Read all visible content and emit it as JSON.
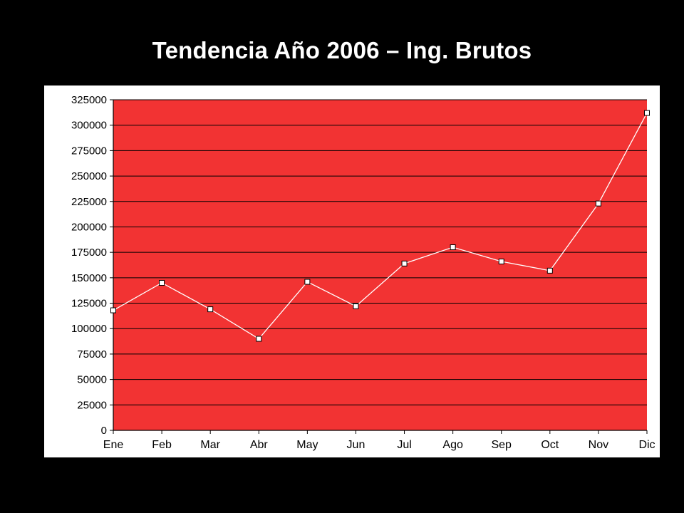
{
  "slide": {
    "title": "Tendencia Año 2006 – Ing. Brutos"
  },
  "colors": {
    "background": "#000000",
    "plot_area": "#f23333",
    "line": "#ffffff",
    "marker_fill": "#ffffff",
    "marker_stroke": "#000000",
    "gridlines": "#000000"
  },
  "chart_data": {
    "type": "line",
    "title": "",
    "xlabel": "",
    "ylabel": "",
    "categories": [
      "Ene",
      "Feb",
      "Mar",
      "Abr",
      "May",
      "Jun",
      "Jul",
      "Ago",
      "Sep",
      "Oct",
      "Nov",
      "Dic"
    ],
    "series": [
      {
        "values": [
          118000,
          145000,
          119000,
          90000,
          146000,
          122000,
          164000,
          180000,
          166000,
          157000,
          223000,
          312000
        ]
      }
    ],
    "ylim": [
      0,
      325000
    ],
    "yticks": [
      0,
      25000,
      50000,
      75000,
      100000,
      125000,
      150000,
      175000,
      200000,
      225000,
      250000,
      275000,
      300000,
      325000
    ],
    "grid": true,
    "legend": "none",
    "markers": "square"
  }
}
